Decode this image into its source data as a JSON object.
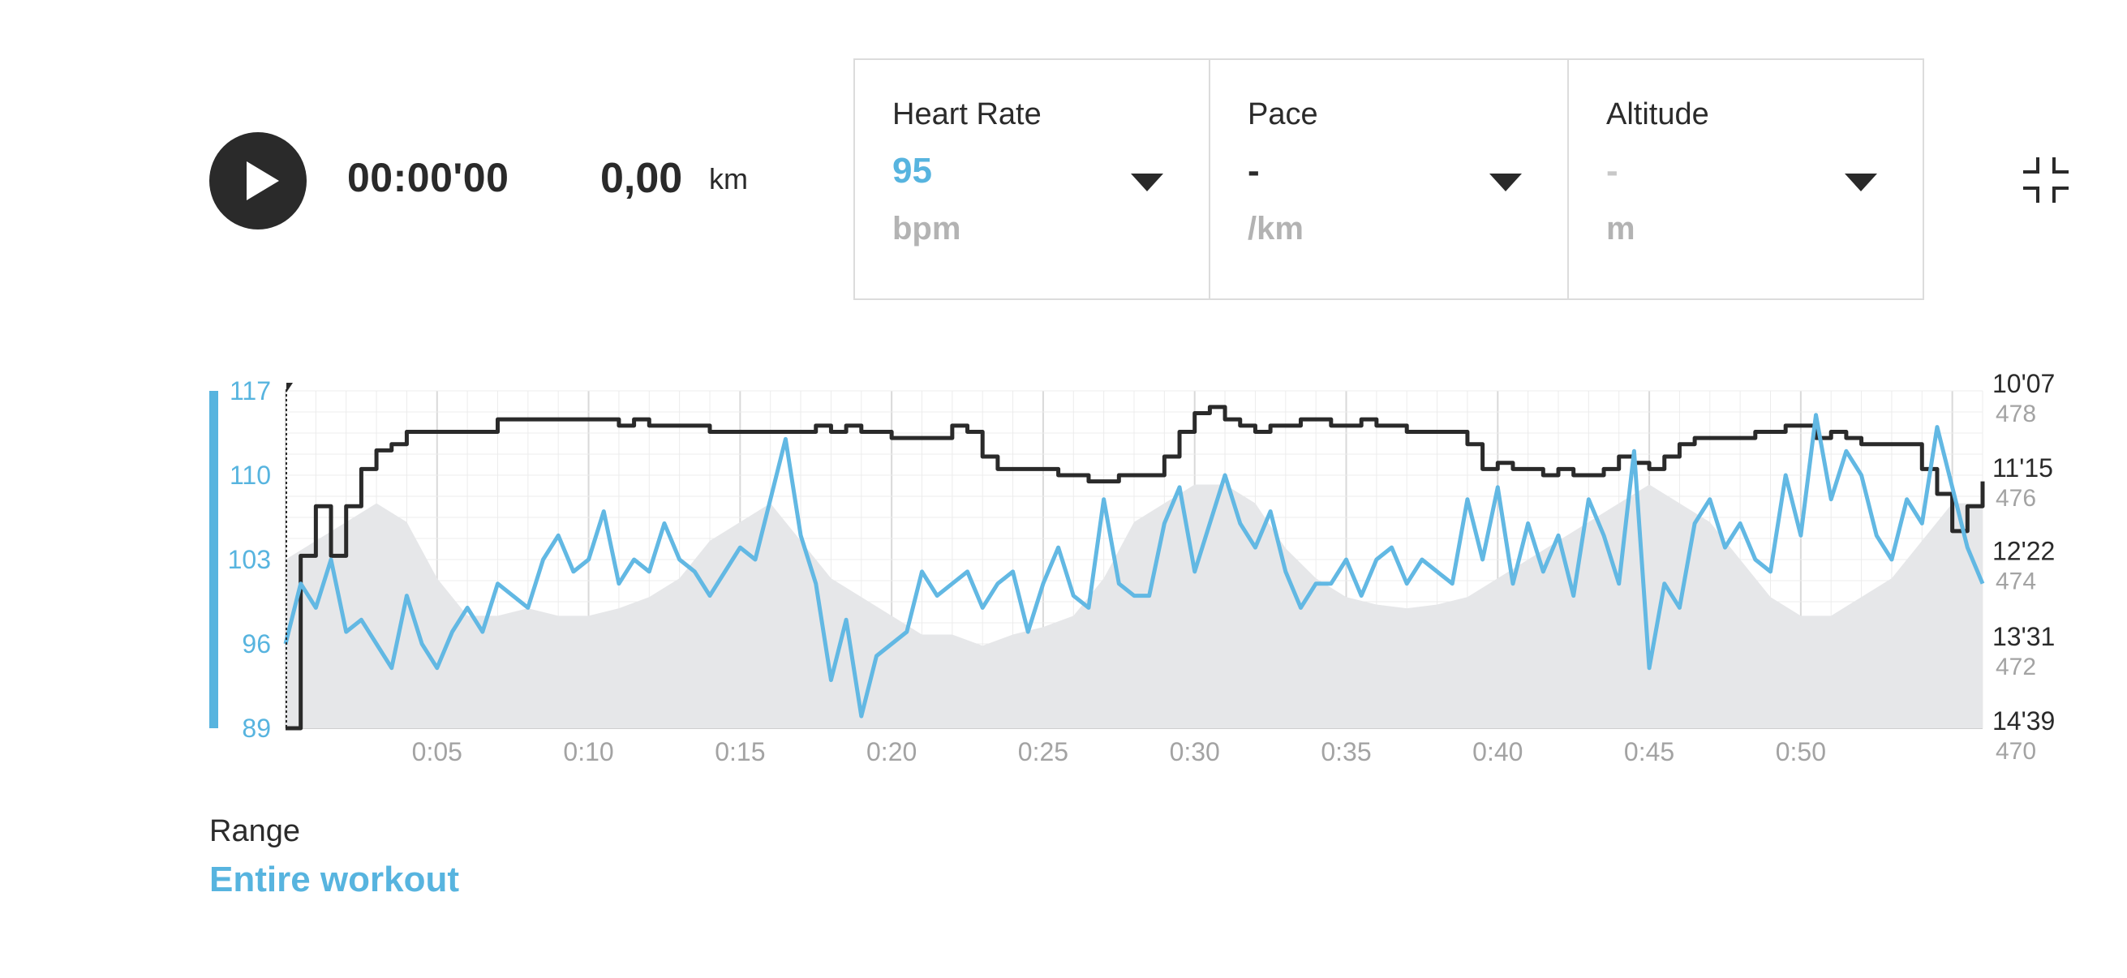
{
  "player": {
    "play_icon": "play-icon",
    "elapsed_time": "00:00'00",
    "distance_value": "0,00",
    "distance_unit": "km"
  },
  "metrics": [
    {
      "title": "Heart Rate",
      "value": "95",
      "unit": "bpm",
      "value_color": "#57b4df"
    },
    {
      "title": "Pace",
      "value": "-",
      "unit": "/km",
      "value_color": "#2a2a2a"
    },
    {
      "title": "Altitude",
      "value": "-",
      "unit": "m",
      "value_color": "#c8c8c8"
    }
  ],
  "collapse_icon": "collapse-icon",
  "range": {
    "label": "Range",
    "value": "Entire workout"
  },
  "chart_data": {
    "type": "line",
    "x_unit": "minutes",
    "xlim": [
      0,
      56
    ],
    "x_ticks": [
      "0:05",
      "0:10",
      "0:15",
      "0:20",
      "0:25",
      "0:30",
      "0:35",
      "0:40",
      "0:45",
      "0:50"
    ],
    "grid": true,
    "colors": {
      "heart_rate": "#62b8e3",
      "pace": "#2a2a2a",
      "altitude": "#e6e7e9",
      "axis_left": "#57b4df"
    },
    "y_left": {
      "ticks": [
        "117",
        "110",
        "103",
        "96",
        "89"
      ],
      "ylim": [
        89,
        117
      ]
    },
    "y_right_pace": {
      "ticks": [
        "10'07",
        "11'15",
        "12'22",
        "13'31",
        "14'39"
      ]
    },
    "y_right_altitude": {
      "ticks": [
        "478",
        "476",
        "474",
        "472",
        "470"
      ],
      "ylim": [
        470,
        479
      ]
    },
    "series": [
      {
        "key": "heart_rate",
        "axis": "left",
        "x": [
          0,
          0.5,
          1,
          1.5,
          2,
          2.5,
          3,
          3.5,
          4,
          4.5,
          5,
          5.5,
          6,
          6.5,
          7,
          7.5,
          8,
          8.5,
          9,
          9.5,
          10,
          10.5,
          11,
          11.5,
          12,
          12.5,
          13,
          13.5,
          14,
          14.5,
          15,
          15.5,
          16,
          16.5,
          17,
          17.5,
          18,
          18.5,
          19,
          19.5,
          20,
          20.5,
          21,
          21.5,
          22,
          22.5,
          23,
          23.5,
          24,
          24.5,
          25,
          25.5,
          26,
          26.5,
          27,
          27.5,
          28,
          28.5,
          29,
          29.5,
          30,
          30.5,
          31,
          31.5,
          32,
          32.5,
          33,
          33.5,
          34,
          34.5,
          35,
          35.5,
          36,
          36.5,
          37,
          37.5,
          38,
          38.5,
          39,
          39.5,
          40,
          40.5,
          41,
          41.5,
          42,
          42.5,
          43,
          43.5,
          44,
          44.5,
          45,
          45.5,
          46,
          46.5,
          47,
          47.5,
          48,
          48.5,
          49,
          49.5,
          50,
          50.5,
          51,
          51.5,
          52,
          52.5,
          53,
          53.5,
          54,
          54.5,
          55,
          55.5,
          56
        ],
        "values": [
          96,
          101,
          99,
          103,
          97,
          98,
          96,
          94,
          100,
          96,
          94,
          97,
          99,
          97,
          101,
          100,
          99,
          103,
          105,
          102,
          103,
          107,
          101,
          103,
          102,
          106,
          103,
          102,
          100,
          102,
          104,
          103,
          108,
          113,
          105,
          101,
          93,
          98,
          90,
          95,
          96,
          97,
          102,
          100,
          101,
          102,
          99,
          101,
          102,
          97,
          101,
          104,
          100,
          99,
          108,
          101,
          100,
          100,
          106,
          109,
          102,
          106,
          110,
          106,
          104,
          107,
          102,
          99,
          101,
          101,
          103,
          100,
          103,
          104,
          101,
          103,
          102,
          101,
          108,
          103,
          109,
          101,
          106,
          102,
          105,
          100,
          108,
          105,
          101,
          112,
          94,
          101,
          99,
          106,
          108,
          104,
          106,
          103,
          102,
          110,
          105,
          115,
          108,
          112,
          110,
          105,
          103,
          108,
          106,
          114,
          109,
          104,
          101
        ]
      },
      {
        "key": "pace",
        "axis": "right_pace",
        "x": [
          0,
          0.5,
          1,
          1.5,
          2,
          2.5,
          3,
          3.5,
          4,
          4.5,
          5,
          5.5,
          6,
          6.5,
          7,
          7.5,
          8,
          8.5,
          9,
          9.5,
          10,
          10.5,
          11,
          11.5,
          12,
          12.5,
          13,
          13.5,
          14,
          14.5,
          15,
          15.5,
          16,
          16.5,
          17,
          17.5,
          18,
          18.5,
          19,
          19.5,
          20,
          20.5,
          21,
          21.5,
          22,
          22.5,
          23,
          23.5,
          24,
          24.5,
          25,
          25.5,
          26,
          26.5,
          27,
          27.5,
          28,
          28.5,
          29,
          29.5,
          30,
          30.5,
          31,
          31.5,
          32,
          32.5,
          33,
          33.5,
          34,
          34.5,
          35,
          35.5,
          36,
          36.5,
          37,
          37.5,
          38,
          38.5,
          39,
          39.5,
          40,
          40.5,
          41,
          41.5,
          42,
          42.5,
          43,
          43.5,
          44,
          44.5,
          45,
          45.5,
          46,
          46.5,
          47,
          47.5,
          48,
          48.5,
          49,
          49.5,
          50,
          50.5,
          51,
          51.5,
          52,
          52.5,
          53,
          53.5,
          54,
          54.5,
          55,
          55.5,
          56
        ],
        "values": [
          "14'39",
          "12'20",
          "11'40",
          "12'20",
          "11'40",
          "11'10",
          "10'55",
          "10'50",
          "10'40",
          "10'40",
          "10'40",
          "10'40",
          "10'40",
          "10'40",
          "10'30",
          "10'30",
          "10'30",
          "10'30",
          "10'30",
          "10'30",
          "10'30",
          "10'30",
          "10'35",
          "10'30",
          "10'35",
          "10'35",
          "10'35",
          "10'35",
          "10'40",
          "10'40",
          "10'40",
          "10'40",
          "10'40",
          "10'40",
          "10'40",
          "10'35",
          "10'40",
          "10'35",
          "10'40",
          "10'40",
          "10'45",
          "10'45",
          "10'45",
          "10'45",
          "10'35",
          "10'40",
          "11'00",
          "11'10",
          "11'10",
          "11'10",
          "11'10",
          "11'15",
          "11'15",
          "11'20",
          "11'20",
          "11'15",
          "11'15",
          "11'15",
          "11'00",
          "10'40",
          "10'25",
          "10'20",
          "10'30",
          "10'35",
          "10'40",
          "10'35",
          "10'35",
          "10'30",
          "10'30",
          "10'35",
          "10'35",
          "10'30",
          "10'35",
          "10'35",
          "10'40",
          "10'40",
          "10'40",
          "10'40",
          "10'50",
          "11'10",
          "11'05",
          "11'10",
          "11'10",
          "11'15",
          "11'10",
          "11'15",
          "11'15",
          "11'10",
          "11'00",
          "11'05",
          "11'10",
          "11'00",
          "10'50",
          "10'45",
          "10'45",
          "10'45",
          "10'45",
          "10'40",
          "10'40",
          "10'35",
          "10'35",
          "10'45",
          "10'40",
          "10'45",
          "10'50",
          "10'50",
          "10'50",
          "10'50",
          "11'10",
          "11'30",
          "12'00",
          "11'40",
          "11'20"
        ]
      },
      {
        "key": "altitude",
        "axis": "right_altitude",
        "type": "area",
        "x": [
          0,
          1,
          2,
          3,
          4,
          5,
          6,
          7,
          8,
          9,
          10,
          11,
          12,
          13,
          14,
          15,
          16,
          17,
          18,
          19,
          20,
          21,
          22,
          23,
          24,
          25,
          26,
          27,
          28,
          29,
          30,
          31,
          32,
          33,
          34,
          35,
          36,
          37,
          38,
          39,
          40,
          41,
          42,
          43,
          44,
          45,
          46,
          47,
          48,
          49,
          50,
          51,
          52,
          53,
          54,
          55,
          56
        ],
        "values": [
          474.5,
          475,
          475.5,
          476,
          475.5,
          474,
          473,
          473,
          473.2,
          473,
          473,
          473.2,
          473.5,
          474,
          475,
          475.5,
          476,
          475,
          474,
          473.5,
          473,
          472.5,
          472.5,
          472.2,
          472.5,
          472.7,
          473,
          474,
          475.5,
          476,
          476.5,
          476.5,
          476,
          474.8,
          474,
          473.5,
          473.3,
          473.2,
          473.3,
          473.5,
          474,
          474.5,
          475,
          475.5,
          476,
          476.5,
          476,
          475.5,
          474.5,
          473.5,
          473,
          473,
          473.5,
          474,
          475,
          476,
          476
        ]
      }
    ]
  }
}
